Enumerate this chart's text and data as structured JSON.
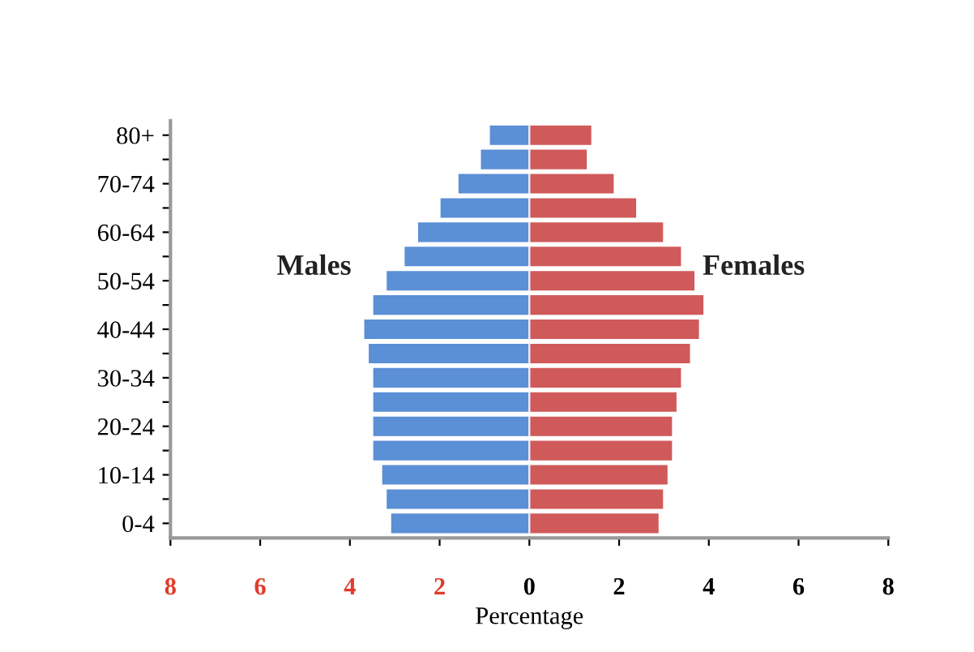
{
  "chart_data": [
    {
      "type": "bar",
      "orientation": "horizontal",
      "xlabel": "Percentage",
      "categories": [
        "80+",
        null,
        "70-74",
        null,
        "60-64",
        null,
        "50-54",
        null,
        "40-44",
        null,
        "30-34",
        null,
        "20-24",
        null,
        "10-14",
        null,
        "0-4"
      ],
      "series": [
        {
          "name": "Males",
          "color": "#5b8fd6",
          "values": [
            0.9,
            1.1,
            1.6,
            2.0,
            2.5,
            2.8,
            3.2,
            3.5,
            3.7,
            3.6,
            3.5,
            3.5,
            3.5,
            3.5,
            3.3,
            3.2,
            3.1
          ]
        }
      ],
      "xlim": [
        8,
        0
      ],
      "xticks": [
        8,
        6,
        4,
        2
      ],
      "grid": false,
      "legend": false
    },
    {
      "type": "bar",
      "orientation": "horizontal",
      "categories": [
        null,
        null,
        null,
        null,
        null,
        null,
        null,
        null,
        null,
        null,
        null,
        null,
        null,
        null,
        null,
        null,
        null
      ],
      "series": [
        {
          "name": "Females",
          "color": "#d05a5a",
          "values": [
            1.4,
            1.3,
            1.9,
            2.4,
            3.0,
            3.4,
            3.7,
            3.9,
            3.8,
            3.6,
            3.4,
            3.3,
            3.2,
            3.2,
            3.1,
            3.0,
            2.9
          ]
        }
      ],
      "xlim": [
        0,
        8
      ],
      "xticks": [
        0,
        2,
        4,
        6,
        8
      ],
      "tick_labels": "x",
      "grid": false,
      "legend": false
    }
  ]
}
